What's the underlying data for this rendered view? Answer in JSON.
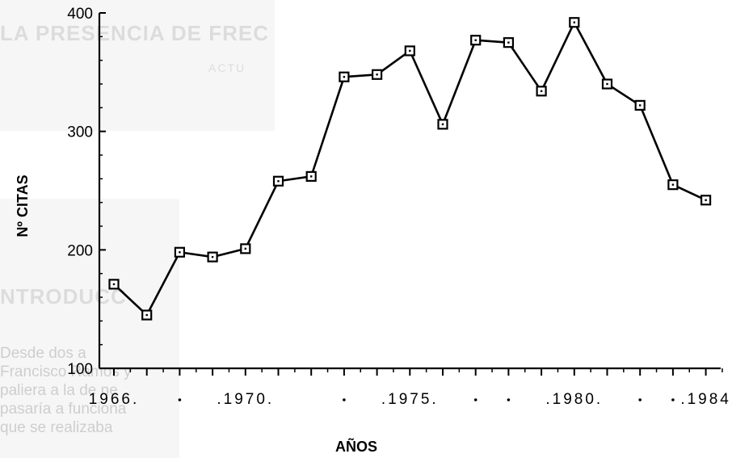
{
  "background_bleed": {
    "heading": "LA PRESENCIA DE FREC",
    "subheading": "ACTU",
    "section": "NTRODUCC",
    "body_lines": [
      "Desde dos a",
      "Francisco Ramos y",
      "paliera a la de ne",
      "pasaría a funciona",
      "que se realizaba"
    ]
  },
  "chart_data": {
    "type": "line",
    "title": "",
    "xlabel": "AÑOS",
    "ylabel": "Nº CITAS",
    "ylim": [
      100,
      400
    ],
    "xlim": [
      1966,
      1984
    ],
    "y_ticks": [
      100,
      200,
      300,
      400
    ],
    "y_tick_labels": [
      "100",
      "200",
      "300",
      "400"
    ],
    "x_tick_labels": [
      {
        "x": 1966,
        "text": "1966."
      },
      {
        "x": 1970,
        "text": ".1970."
      },
      {
        "x": 1975,
        "text": ".1975."
      },
      {
        "x": 1980,
        "text": ".1980."
      },
      {
        "x": 1984,
        "text": ".1984"
      }
    ],
    "x_minor_dots": [
      1968,
      1973,
      1977,
      1978,
      1982,
      1983
    ],
    "grid": false,
    "marker": "open-square",
    "line_color": "#000000",
    "series": [
      {
        "x": [
          1966,
          1967,
          1968,
          1969,
          1970,
          1971,
          1972,
          1973,
          1974,
          1975,
          1976,
          1977,
          1978,
          1979,
          1980,
          1981,
          1982,
          1983,
          1984
        ],
        "values": [
          171,
          145,
          198,
          194,
          201,
          258,
          262,
          346,
          348,
          368,
          306,
          377,
          375,
          334,
          392,
          340,
          322,
          255,
          242
        ]
      }
    ]
  }
}
